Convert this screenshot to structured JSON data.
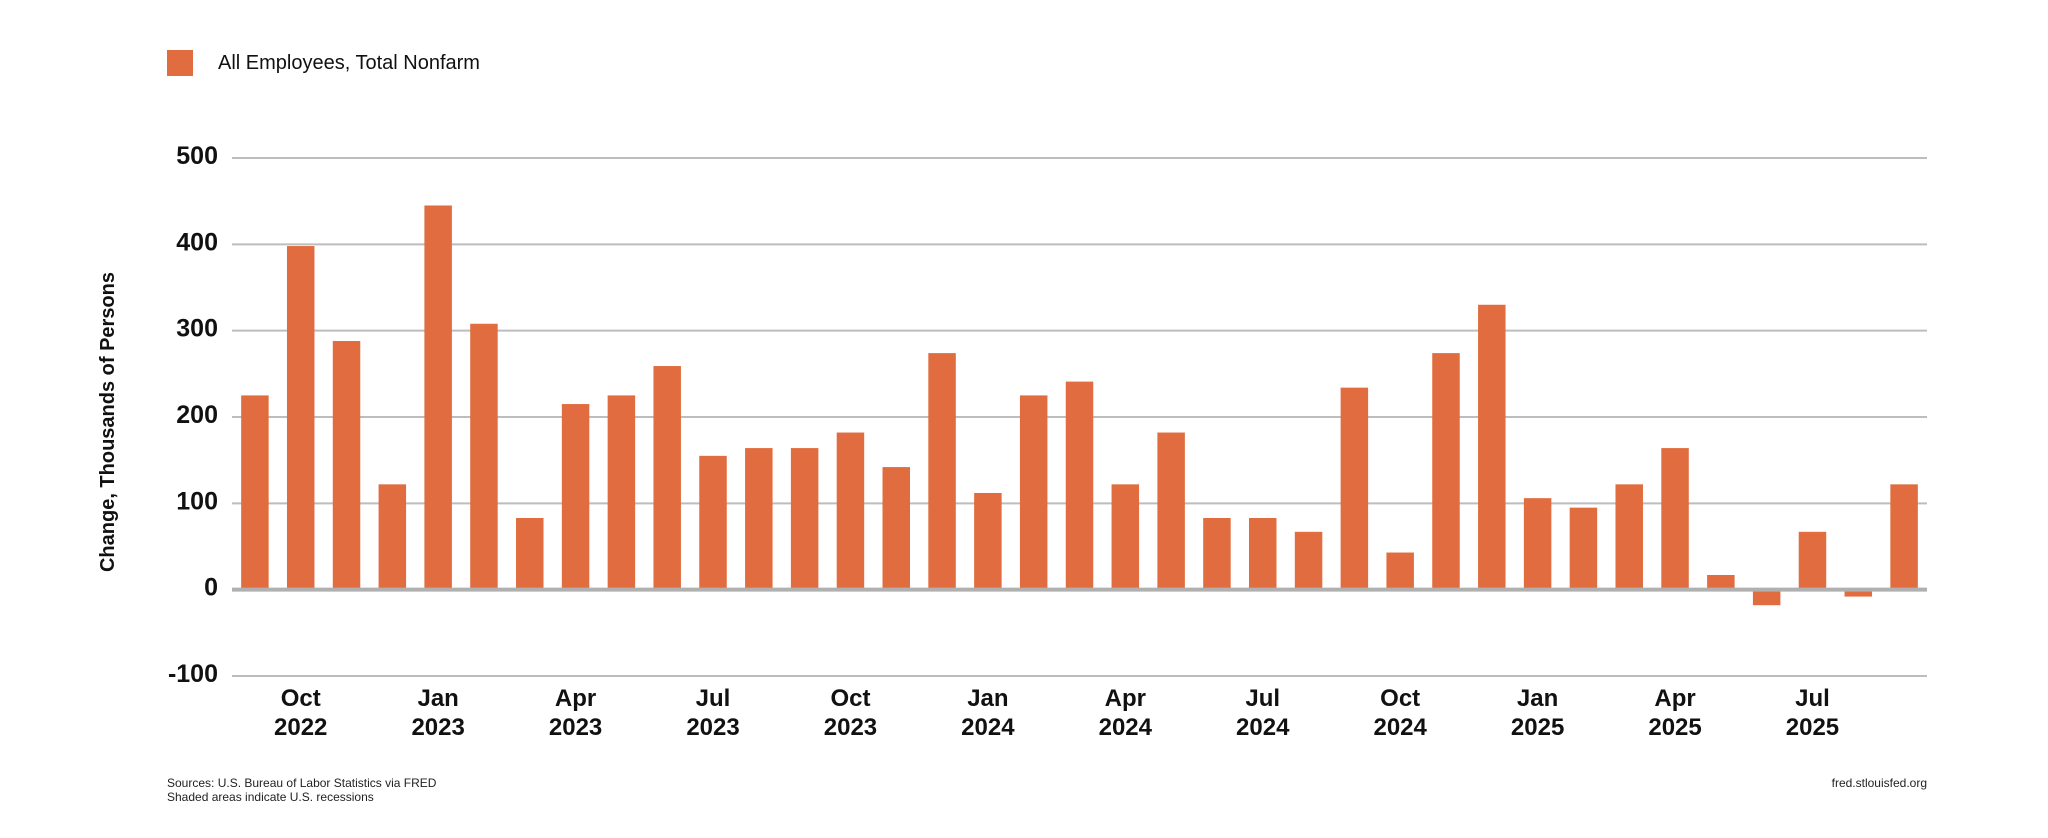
{
  "chart_data": {
    "type": "bar",
    "legend": [
      {
        "name": "All Employees, Total Nonfarm",
        "color": "#e06c3f"
      }
    ],
    "series": [
      {
        "name": "All Employees, Total Nonfarm",
        "color": "#e06c3f",
        "x": [
          "2022-09",
          "2022-10",
          "2022-11",
          "2022-12",
          "2023-01",
          "2023-02",
          "2023-03",
          "2023-04",
          "2023-05",
          "2023-06",
          "2023-07",
          "2023-08",
          "2023-09",
          "2023-10",
          "2023-11",
          "2023-12",
          "2024-01",
          "2024-02",
          "2024-03",
          "2024-04",
          "2024-05",
          "2024-06",
          "2024-07",
          "2024-08",
          "2024-09",
          "2024-10",
          "2024-11",
          "2024-12",
          "2025-01",
          "2025-02",
          "2025-03",
          "2025-04",
          "2025-05",
          "2025-06",
          "2025-07",
          "2025-08",
          "2025-09"
        ],
        "values": [
          225,
          398,
          288,
          122,
          445,
          308,
          83,
          215,
          225,
          259,
          155,
          164,
          164,
          182,
          142,
          274,
          112,
          225,
          241,
          122,
          182,
          83,
          83,
          67,
          234,
          43,
          274,
          330,
          106,
          95,
          122,
          164,
          17,
          -18,
          67,
          -8,
          122
        ]
      }
    ],
    "x_ticks": [
      {
        "x": "2022-10",
        "month": "Oct",
        "year": "2022"
      },
      {
        "x": "2023-01",
        "month": "Jan",
        "year": "2023"
      },
      {
        "x": "2023-04",
        "month": "Apr",
        "year": "2023"
      },
      {
        "x": "2023-07",
        "month": "Jul",
        "year": "2023"
      },
      {
        "x": "2023-10",
        "month": "Oct",
        "year": "2023"
      },
      {
        "x": "2024-01",
        "month": "Jan",
        "year": "2024"
      },
      {
        "x": "2024-04",
        "month": "Apr",
        "year": "2024"
      },
      {
        "x": "2024-07",
        "month": "Jul",
        "year": "2024"
      },
      {
        "x": "2024-10",
        "month": "Oct",
        "year": "2024"
      },
      {
        "x": "2025-01",
        "month": "Jan",
        "year": "2025"
      },
      {
        "x": "2025-04",
        "month": "Apr",
        "year": "2025"
      },
      {
        "x": "2025-07",
        "month": "Jul",
        "year": "2025"
      }
    ],
    "y_ticks": [
      500,
      400,
      300,
      200,
      100,
      0,
      -100
    ],
    "y_tick_labels": [
      "500",
      "400",
      "300",
      "200",
      "100",
      "0",
      "-100"
    ],
    "ylabel": "Change, Thousands of Persons",
    "ylim": [
      -100,
      500
    ],
    "grid": true,
    "legend_position": "top-left"
  },
  "footer": {
    "sources": "Sources: U.S. Bureau of Labor Statistics via FRED",
    "recessions_note": "Shaded areas indicate U.S. recessions",
    "site": "fred.stlouisfed.org"
  }
}
